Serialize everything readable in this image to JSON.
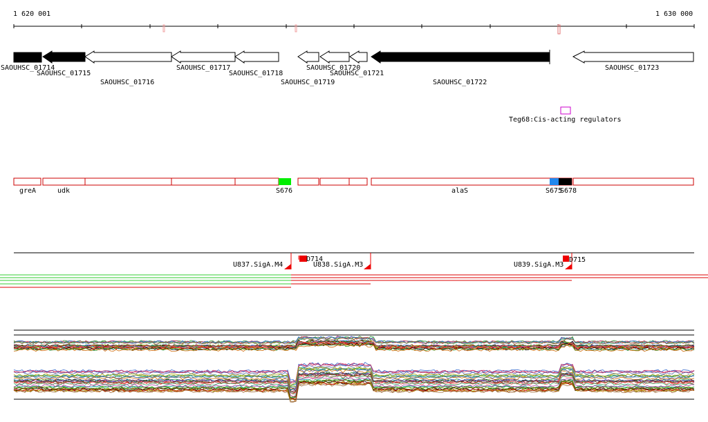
{
  "ruler": {
    "start_label": "1 620 001",
    "end_label": "1 630 000",
    "start": 1620001,
    "end": 1630000
  },
  "genes": [
    {
      "id": "SAOUHSC_01714",
      "strand": "+",
      "filled": true
    },
    {
      "id": "SAOUHSC_01715",
      "strand": "-",
      "filled": true
    },
    {
      "id": "SAOUHSC_01716",
      "strand": "-",
      "filled": false
    },
    {
      "id": "SAOUHSC_01717",
      "strand": "-",
      "filled": false
    },
    {
      "id": "SAOUHSC_01718",
      "strand": "-",
      "filled": false
    },
    {
      "id": "SAOUHSC_01719",
      "strand": "-",
      "filled": false
    },
    {
      "id": "SAOUHSC_01720",
      "strand": "-",
      "filled": false
    },
    {
      "id": "SAOUHSC_01721",
      "strand": "-",
      "filled": false
    },
    {
      "id": "SAOUHSC_01722",
      "strand": "-",
      "filled": true
    },
    {
      "id": "SAOUHSC_01723",
      "strand": "-",
      "filled": false
    }
  ],
  "regulator": {
    "label": "Teg68:Cis-acting regulators",
    "color": "#cc00cc"
  },
  "annotation_track": {
    "labels": [
      "greA",
      "udk",
      "S676",
      "alaS",
      "S675",
      "S678"
    ],
    "colors": {
      "outline": "#cc0000",
      "S676": "#00ee00",
      "S675": "#2288ee",
      "S678": "#000000"
    }
  },
  "promoters": {
    "labels": [
      "U837.SigA.M4",
      "U838.SigA.M3",
      "U839.SigA.M3"
    ],
    "boxes": [
      "D714",
      "D715"
    ],
    "color": "#ee0000"
  },
  "colors": {
    "green_transcript": "#33cc33",
    "red_transcript": "#dd0000"
  }
}
